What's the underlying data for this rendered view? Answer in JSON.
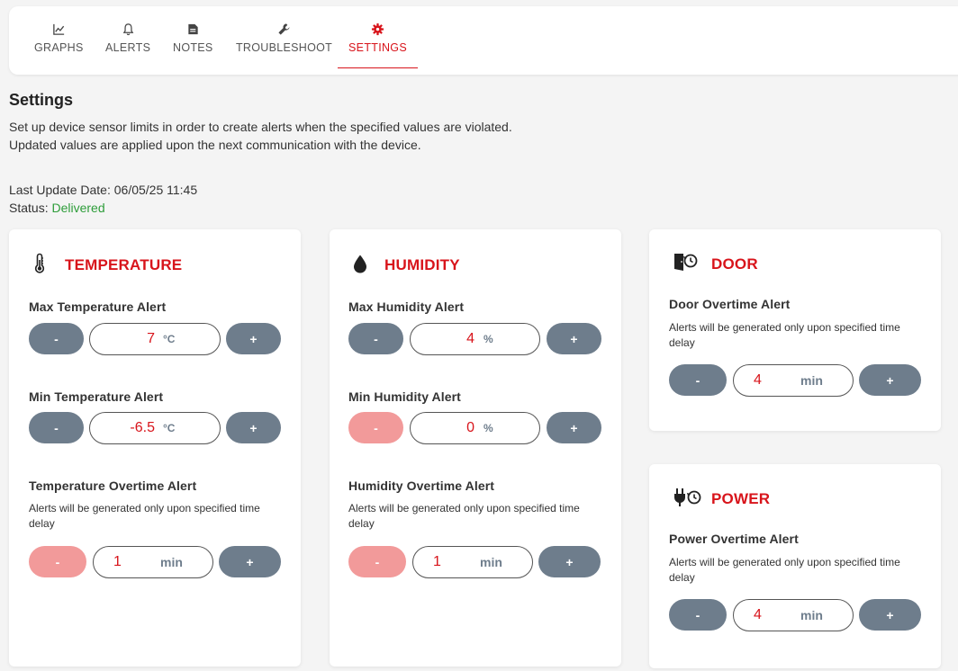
{
  "tabs": [
    {
      "label": "GRAPHS",
      "icon": "chart-line-icon"
    },
    {
      "label": "ALERTS",
      "icon": "bell-icon"
    },
    {
      "label": "NOTES",
      "icon": "note-icon"
    },
    {
      "label": "TROUBLESHOOT",
      "icon": "wrench-icon"
    },
    {
      "label": "SETTINGS",
      "icon": "gear-icon",
      "active": true
    }
  ],
  "header": {
    "title": "Settings",
    "desc1": "Set up device sensor limits in order to create alerts when the specified values are violated.",
    "desc2": "Updated values are applied upon the next communication with the device.",
    "last_update_label": "Last Update Date:",
    "last_update_value": "06/05/25 11:45",
    "status_label": "Status:",
    "status_value": "Delivered"
  },
  "colors": {
    "accent": "#d8141b",
    "button": "#6e7d8c",
    "button_disabled": "#f29a9a",
    "status_ok": "#2e9d3a"
  },
  "temperature": {
    "title": "TEMPERATURE",
    "max_label": "Max Temperature Alert",
    "max_value": "7",
    "unit": "°C",
    "min_label": "Min Temperature Alert",
    "min_value": "-6.5",
    "overtime_label": "Temperature Overtime Alert",
    "hint_line1": "Alerts will be generated only upon specified time",
    "hint_line2": "delay",
    "overtime_value": "1",
    "time_unit": "min"
  },
  "humidity": {
    "title": "HUMIDITY",
    "max_label": "Max Humidity Alert",
    "max_value": "4",
    "unit": "%",
    "min_label": "Min Humidity Alert",
    "min_value": "0",
    "overtime_label": "Humidity Overtime Alert",
    "hint_line1": "Alerts will be generated only upon specified time",
    "hint_line2": "delay",
    "overtime_value": "1",
    "time_unit": "min"
  },
  "door": {
    "title": "DOOR",
    "overtime_label": "Door Overtime Alert",
    "hint_line1": "Alerts will be generated only upon specified time",
    "hint_line2": "delay",
    "overtime_value": "4",
    "time_unit": "min"
  },
  "power": {
    "title": "POWER",
    "overtime_label": "Power Overtime Alert",
    "hint_line1": "Alerts will be generated only upon specified time",
    "hint_line2": "delay",
    "overtime_value": "4",
    "time_unit": "min"
  },
  "buttons": {
    "minus": "-",
    "plus": "+"
  }
}
